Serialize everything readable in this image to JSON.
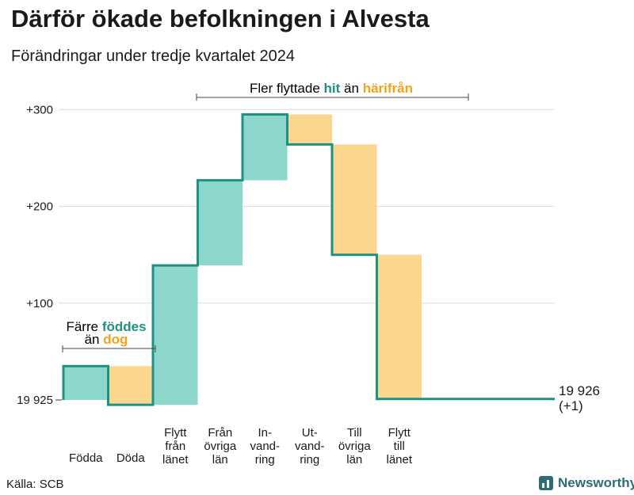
{
  "title": "Därför ökade befolkningen i Alvesta",
  "subtitle": "Förändringar under tredje kvartalet 2024",
  "source": "Källa: SCB",
  "brand": {
    "name": "Newsworthy",
    "icon": "newsworthy-logo-icon"
  },
  "colors": {
    "increase": "#8ed7cc",
    "decrease": "#fbd68f",
    "line": "#1d9183",
    "accent_teal": "#1d9183",
    "accent_orange": "#f5a11c",
    "grid": "#dcdcdc"
  },
  "annotations": {
    "birth": {
      "line1": "Färre",
      "hl1": "föddes",
      "line2": "än",
      "hl2": "dog"
    },
    "migration": {
      "prefix": "Fler flyttade",
      "hl1": "hit",
      "mid": "än",
      "hl2": "härifrån"
    }
  },
  "chart_data": {
    "type": "waterfall",
    "base_population": 19925,
    "y_ticks": [
      "19 925",
      "+100",
      "+200",
      "+300"
    ],
    "ylim": [
      -5,
      300
    ],
    "categories": [
      {
        "label": [
          "Födda"
        ],
        "change": 35
      },
      {
        "label": [
          "Döda"
        ],
        "change": -40
      },
      {
        "label": [
          "Flytt",
          "från",
          "länet"
        ],
        "change": 144
      },
      {
        "label": [
          "Från",
          "övriga",
          "län"
        ],
        "change": 88
      },
      {
        "label": [
          "In-",
          "vand-",
          "ring"
        ],
        "change": 68
      },
      {
        "label": [
          "Ut-",
          "vand-",
          "ring"
        ],
        "change": -31
      },
      {
        "label": [
          "Till",
          "övriga",
          "län"
        ],
        "change": -114
      },
      {
        "label": [
          "Flytt",
          "till",
          "länet"
        ],
        "change": -149
      }
    ],
    "end_label": {
      "value": "19 926",
      "change": "(+1)"
    }
  }
}
